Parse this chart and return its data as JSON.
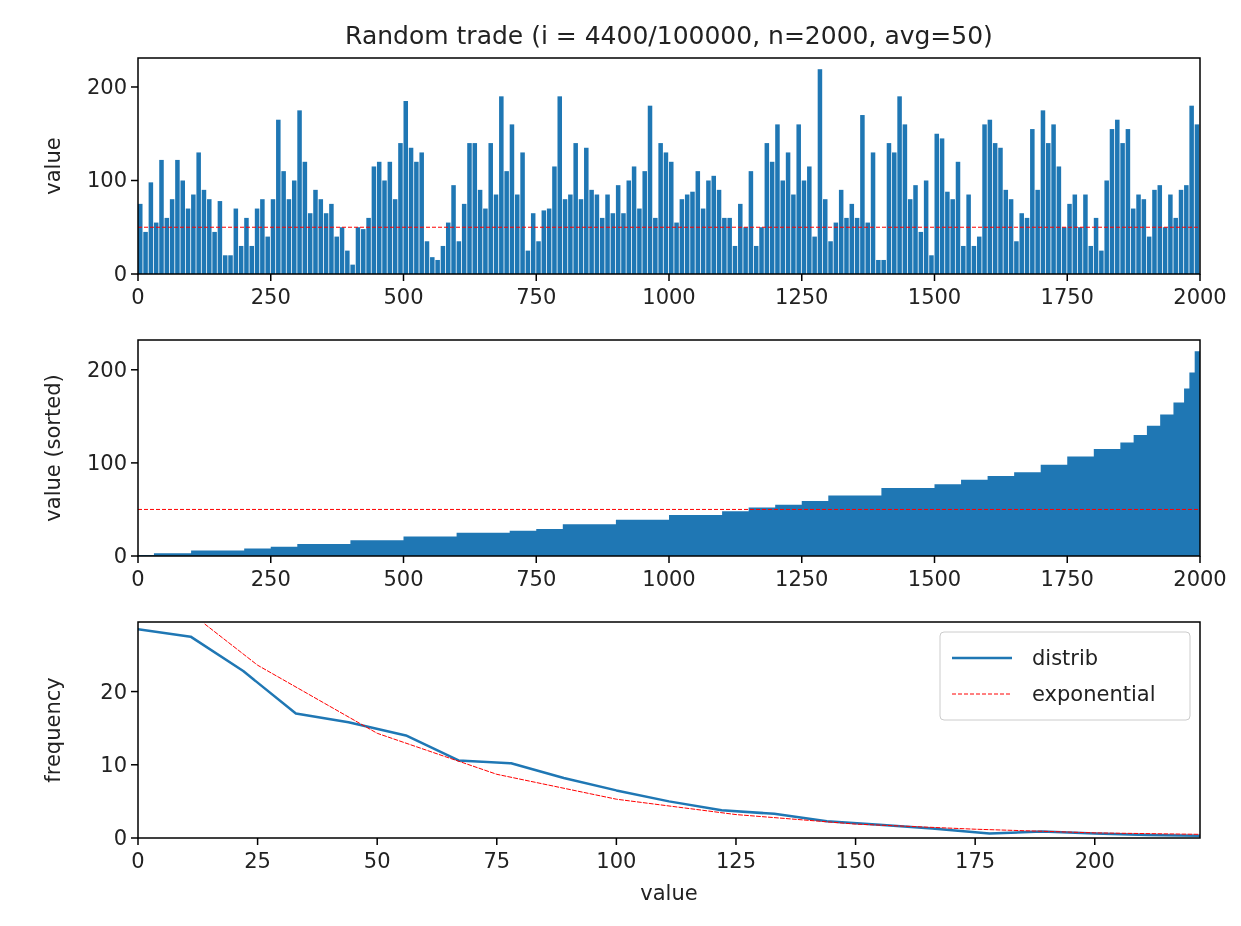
{
  "chart_data": [
    {
      "type": "bar",
      "title": "Random trade (i = 4400/100000, n=2000, avg=50)",
      "ylabel": "value",
      "color": "#1f77b4",
      "x": [
        0,
        10,
        20,
        30,
        40,
        50,
        60,
        70,
        80,
        90,
        100,
        110,
        120,
        130,
        140,
        150,
        160,
        170,
        180,
        190,
        200,
        210,
        220,
        230,
        240,
        250,
        260,
        270,
        280,
        290,
        300,
        310,
        320,
        330,
        340,
        350,
        360,
        370,
        380,
        390,
        400,
        410,
        420,
        430,
        440,
        450,
        460,
        470,
        480,
        490,
        500,
        510,
        520,
        530,
        540,
        550,
        560,
        570,
        580,
        590,
        600,
        610,
        620,
        630,
        640,
        650,
        660,
        670,
        680,
        690,
        700,
        710,
        720,
        730,
        740,
        750,
        760,
        770,
        780,
        790,
        800,
        810,
        820,
        830,
        840,
        850,
        860,
        870,
        880,
        890,
        900,
        910,
        920,
        930,
        940,
        950,
        960,
        970,
        980,
        990,
        1000,
        1010,
        1020,
        1030,
        1040,
        1050,
        1060,
        1070,
        1080,
        1090,
        1100,
        1110,
        1120,
        1130,
        1140,
        1150,
        1160,
        1170,
        1180,
        1190,
        1200,
        1210,
        1220,
        1230,
        1240,
        1250,
        1260,
        1270,
        1280,
        1290,
        1300,
        1310,
        1320,
        1330,
        1340,
        1350,
        1360,
        1370,
        1380,
        1390,
        1400,
        1410,
        1420,
        1430,
        1440,
        1450,
        1460,
        1470,
        1480,
        1490,
        1500,
        1510,
        1520,
        1530,
        1540,
        1550,
        1560,
        1570,
        1580,
        1590,
        1600,
        1610,
        1620,
        1630,
        1640,
        1650,
        1660,
        1670,
        1680,
        1690,
        1700,
        1710,
        1720,
        1730,
        1740,
        1750,
        1760,
        1770,
        1780,
        1790,
        1800,
        1810,
        1820,
        1830,
        1840,
        1850,
        1860,
        1870,
        1880,
        1890,
        1900,
        1910,
        1920,
        1930,
        1940,
        1950,
        1960,
        1970,
        1980,
        1990
      ],
      "values": [
        75,
        45,
        98,
        55,
        122,
        60,
        80,
        122,
        100,
        70,
        85,
        130,
        90,
        80,
        45,
        78,
        20,
        20,
        70,
        30,
        60,
        30,
        70,
        80,
        40,
        80,
        165,
        110,
        80,
        100,
        175,
        120,
        65,
        90,
        80,
        65,
        75,
        40,
        50,
        25,
        10,
        50,
        48,
        60,
        115,
        120,
        100,
        120,
        80,
        140,
        185,
        135,
        120,
        130,
        35,
        18,
        15,
        30,
        55,
        95,
        35,
        75,
        140,
        140,
        90,
        70,
        140,
        85,
        190,
        110,
        160,
        85,
        130,
        25,
        65,
        35,
        68,
        70,
        115,
        190,
        80,
        85,
        140,
        80,
        135,
        90,
        85,
        60,
        85,
        65,
        95,
        65,
        100,
        115,
        70,
        110,
        180,
        60,
        140,
        130,
        120,
        55,
        80,
        85,
        88,
        110,
        70,
        100,
        105,
        90,
        60,
        60,
        30,
        75,
        50,
        110,
        30,
        50,
        140,
        120,
        160,
        100,
        130,
        85,
        160,
        100,
        115,
        40,
        219,
        80,
        35,
        55,
        90,
        60,
        75,
        60,
        170,
        55,
        130,
        15,
        15,
        140,
        130,
        190,
        160,
        80,
        95,
        45,
        100,
        20,
        150,
        145,
        88,
        80,
        120,
        30,
        85,
        30,
        40,
        160,
        165,
        140,
        135,
        90,
        80,
        35,
        65,
        60,
        155,
        90,
        175,
        140,
        160,
        115,
        50,
        75,
        85,
        50,
        85,
        30,
        60,
        25,
        100,
        155,
        165,
        140,
        155,
        70,
        85,
        80,
        40,
        90,
        95,
        50,
        85,
        60,
        90,
        95,
        180,
        160
      ],
      "xlim": [
        0,
        2000
      ],
      "ylim": [
        0,
        231
      ],
      "xticks": [
        0,
        250,
        500,
        750,
        1000,
        1250,
        1500,
        1750,
        2000
      ],
      "yticks": [
        0,
        100,
        200
      ],
      "ref_lines": [
        {
          "axis": "y",
          "value": 50,
          "color": "#ff0000",
          "line_style": "dashed"
        }
      ]
    },
    {
      "type": "area",
      "ylabel": "value (sorted)",
      "color": "#1f77b4",
      "x": [
        0,
        30,
        100,
        200,
        250,
        300,
        400,
        500,
        600,
        700,
        750,
        800,
        900,
        1000,
        1100,
        1150,
        1200,
        1250,
        1300,
        1400,
        1500,
        1550,
        1600,
        1650,
        1700,
        1750,
        1800,
        1850,
        1875,
        1900,
        1925,
        1950,
        1970,
        1980,
        1990,
        2000
      ],
      "values": [
        0,
        1,
        3,
        6,
        8,
        10,
        13,
        17,
        21,
        25,
        27,
        29,
        34,
        39,
        44,
        48,
        52,
        55,
        59,
        65,
        73,
        77,
        82,
        86,
        90,
        98,
        107,
        115,
        122,
        130,
        140,
        152,
        165,
        180,
        197,
        220
      ],
      "xlim": [
        0,
        2000
      ],
      "ylim": [
        0,
        232
      ],
      "xticks": [
        0,
        250,
        500,
        750,
        1000,
        1250,
        1500,
        1750,
        2000
      ],
      "yticks": [
        0,
        100,
        200
      ],
      "ref_lines": [
        {
          "axis": "y",
          "value": 50,
          "color": "#ff0000",
          "line_style": "dashed"
        }
      ]
    },
    {
      "type": "line",
      "xlabel": "value",
      "ylabel": "frequency",
      "legend": "top right",
      "series": [
        {
          "name": "distrib",
          "color": "#1f77b4",
          "line_style": "solid",
          "x": [
            0,
            11,
            22,
            33,
            44,
            56,
            67,
            78,
            89,
            100,
            111,
            122,
            133,
            144,
            155,
            166,
            178,
            189,
            200,
            211,
            222
          ],
          "values": [
            28.5,
            27.5,
            22.8,
            17,
            15.8,
            14,
            10.6,
            10.2,
            8.2,
            6.5,
            5,
            3.8,
            3.3,
            2.3,
            1.8,
            1.3,
            0.6,
            0.9,
            0.6,
            0.4,
            0.3
          ]
        },
        {
          "name": "exponential",
          "color": "#ff0000",
          "line_style": "dashed",
          "x": [
            14,
            25,
            50,
            75,
            100,
            125,
            150,
            175,
            200,
            222
          ],
          "values": [
            29.2,
            23.6,
            14.3,
            8.7,
            5.3,
            3.2,
            1.9,
            1.2,
            0.7,
            0.5
          ]
        }
      ],
      "xlim": [
        0,
        222
      ],
      "ylim": [
        0,
        29.5
      ],
      "xticks": [
        0,
        25,
        50,
        75,
        100,
        125,
        150,
        175,
        200
      ],
      "yticks": [
        0,
        10,
        20
      ]
    }
  ]
}
